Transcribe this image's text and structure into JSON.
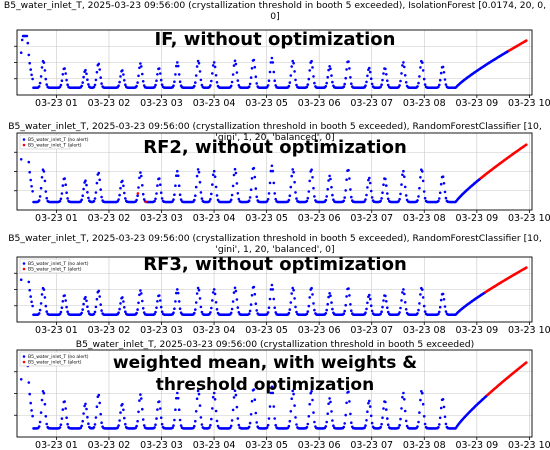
{
  "chart_data": [
    {
      "type": "scatter",
      "title": "B5_water_inlet_T, 2025-03-23 09:56:00 (crystallization threshold in booth 5 exceeded), IsolationForest [0.0174, 20, 0, 0]",
      "title_lines": [
        "B5_water_inlet_T, 2025-03-23 09:56:00 (crystallization threshold in booth 5 exceeded), IsolationForest [0.0174, 20, 0,",
        "0]"
      ],
      "overlay_label": "IF, without optimization",
      "xticks": [
        "03-23 01",
        "03-23 02",
        "03-23 03",
        "03-23 04",
        "03-23 05",
        "03-23 06",
        "03-23 07",
        "03-23 08",
        "03-23 09",
        "03-23 10"
      ],
      "x_range_hours": [
        0.25,
        10.05
      ],
      "y_range": [
        0,
        1
      ],
      "grid": true,
      "legend": "none",
      "alert_from_hour": 9.6,
      "series": [
        {
          "role": "no-alert",
          "color": "#0000ff",
          "x_hours": [
            0.33,
            9.6
          ]
        },
        {
          "role": "alert",
          "color": "#ff0000",
          "x_hours": [
            9.6,
            9.95
          ]
        }
      ]
    },
    {
      "type": "scatter",
      "title": "B5_water_inlet_T, 2025-03-23 09:56:00 (crystallization threshold in booth 5 exceeded), RandomForestClassifier [10, 'gini', 1, 20, 'balanced', 0]",
      "title_lines": [
        "B5_water_inlet_T, 2025-03-23 09:56:00 (crystallization threshold in booth 5 exceeded), RandomForestClassifier [10,",
        "'gini', 1, 20, 'balanced', 0]"
      ],
      "overlay_label": "RF2, without optimization",
      "xticks": [
        "03-23 01",
        "03-23 02",
        "03-23 03",
        "03-23 04",
        "03-23 05",
        "03-23 06",
        "03-23 07",
        "03-23 08",
        "03-23 09",
        "03-23 10"
      ],
      "x_range_hours": [
        0.25,
        10.05
      ],
      "y_range": [
        0,
        1
      ],
      "grid": true,
      "legend": "top-left",
      "legend_entries": [
        "B5_water_inlet_T (no alert)",
        "B5_water_inlet_T (alert)"
      ],
      "alert_from_hour": 9.07,
      "series": [
        {
          "name": "B5_water_inlet_T (no alert)",
          "color": "#0000ff",
          "x_hours": [
            0.33,
            9.07
          ]
        },
        {
          "name": "B5_water_inlet_T (alert)",
          "color": "#ff0000",
          "x_hours": [
            9.07,
            9.95
          ]
        }
      ]
    },
    {
      "type": "scatter",
      "title": "B5_water_inlet_T, 2025-03-23 09:56:00 (crystallization threshold in booth 5 exceeded), RandomForestClassifier [10, 'gini', 1, 20, 'balanced', 0]",
      "title_lines": [
        "B5_water_inlet_T, 2025-03-23 09:56:00 (crystallization threshold in booth 5 exceeded), RandomForestClassifier [10,",
        "'gini', 1, 20, 'balanced', 0]"
      ],
      "overlay_label": "RF3, without optimization",
      "xticks": [
        "03-23 01",
        "03-23 02",
        "03-23 03",
        "03-23 04",
        "03-23 05",
        "03-23 06",
        "03-23 07",
        "03-23 08",
        "03-23 09",
        "03-23 10"
      ],
      "x_range_hours": [
        0.25,
        10.05
      ],
      "y_range": [
        0,
        1
      ],
      "grid": true,
      "legend": "top-left",
      "legend_entries": [
        "B5_water_inlet_T (no alert)",
        "B5_water_inlet_T (alert)"
      ],
      "alert_from_hour": 9.15,
      "series": [
        {
          "name": "B5_water_inlet_T (no alert)",
          "color": "#0000ff",
          "x_hours": [
            0.33,
            9.15
          ]
        },
        {
          "name": "B5_water_inlet_T (alert)",
          "color": "#ff0000",
          "x_hours": [
            9.15,
            9.95
          ]
        }
      ]
    },
    {
      "type": "scatter",
      "title": "B5_water_inlet_T, 2025-03-23 09:56:00 (crystallization threshold in booth 5 exceeded)",
      "title_lines": [
        "B5_water_inlet_T, 2025-03-23 09:56:00 (crystallization threshold in booth 5 exceeded)"
      ],
      "overlay_label": "weighted mean, with weights & threshold optimization",
      "overlay_lines": [
        "weighted mean, with weights &",
        "threshold optimization"
      ],
      "xticks": [
        "03-23 01",
        "03-23 02",
        "03-23 03",
        "03-23 04",
        "03-23 05",
        "03-23 06",
        "03-23 07",
        "03-23 08",
        "03-23 09",
        "03-23 10"
      ],
      "x_range_hours": [
        0.25,
        10.05
      ],
      "y_range": [
        0,
        1
      ],
      "grid": true,
      "legend": "top-left",
      "legend_entries": [
        "B5_water_inlet_T (no alert)",
        "B5_water_inlet_T (alert)"
      ],
      "alert_from_hour": 9.2,
      "series": [
        {
          "name": "B5_water_inlet_T (no alert)",
          "color": "#0000ff",
          "x_hours": [
            0.33,
            9.2
          ]
        },
        {
          "name": "B5_water_inlet_T (alert)",
          "color": "#ff0000",
          "x_hours": [
            9.2,
            9.95
          ]
        }
      ]
    }
  ],
  "signal": {
    "unit": "normalized 0-1",
    "baseline": 0.06,
    "spike_hours": [
      0.4,
      0.75,
      1.15,
      1.55,
      1.8,
      2.25,
      2.6,
      2.95,
      3.3,
      3.7,
      4.0,
      4.4,
      4.75,
      5.1,
      5.5,
      5.85,
      6.2,
      6.55,
      6.95,
      7.25,
      7.6,
      7.95,
      8.35
    ],
    "spike_peaks": [
      0.78,
      0.55,
      0.42,
      0.38,
      0.5,
      0.38,
      0.5,
      0.42,
      0.52,
      0.55,
      0.52,
      0.55,
      0.58,
      0.6,
      0.55,
      0.55,
      0.45,
      0.55,
      0.42,
      0.42,
      0.52,
      0.55,
      0.45
    ],
    "initial_level": 0.9,
    "ramp_start_hour": 8.6,
    "ramp_end_value": 0.92
  }
}
